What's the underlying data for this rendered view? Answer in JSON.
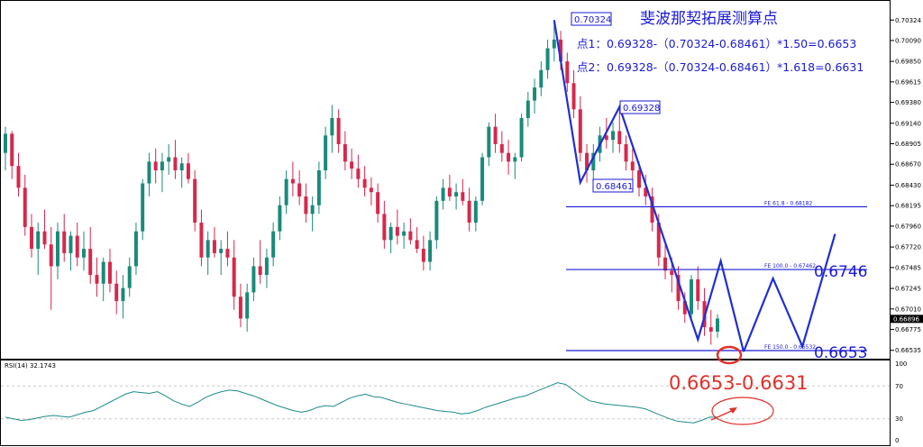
{
  "chart_data": {
    "type": "candlestick",
    "price_ticks": [
      "0.70324",
      "0.70090",
      "0.69850",
      "0.69615",
      "0.69380",
      "0.69140",
      "0.68905",
      "0.68670",
      "0.68430",
      "0.68195",
      "0.67960",
      "0.67720",
      "0.67485",
      "0.67245",
      "0.67010",
      "0.66775",
      "0.66535"
    ],
    "current_price": "0.66896",
    "price_range": [
      0.6646,
      0.7043
    ],
    "annotations": {
      "title": "斐波那契拓展测算点",
      "line1": "点1：0.69328-（0.70324-0.68461）*1.50=0.6653",
      "line2": "点2：0.69328-（0.70324-0.68461）*1.618=0.6631",
      "high_label": "0.70324",
      "mid_label": "0.69328",
      "low_label": "0.68461",
      "target_range": "0.6653-0.6631"
    },
    "fib_levels": [
      {
        "label": "FE 61.8 - 0.68182",
        "value": 0.68182,
        "big_label": ""
      },
      {
        "label": "FE 100.0 - 0.67462",
        "value": 0.67462,
        "big_label": "0.6746"
      },
      {
        "label": "FE 150.0 - 0.66532",
        "value": 0.66532,
        "big_label": "0.6653"
      }
    ],
    "rsi": {
      "label": "RSI(14) 32.1743",
      "ticks": [
        "100",
        "70",
        "30",
        "0"
      ],
      "levels": [
        70,
        30
      ],
      "values": [
        32,
        30,
        28,
        29,
        31,
        33,
        34,
        33,
        32,
        35,
        38,
        40,
        45,
        50,
        55,
        60,
        63,
        62,
        61,
        63,
        58,
        52,
        48,
        45,
        50,
        56,
        60,
        63,
        65,
        64,
        61,
        58,
        54,
        50,
        46,
        43,
        40,
        38,
        40,
        44,
        46,
        45,
        50,
        55,
        58,
        60,
        57,
        56,
        53,
        50,
        48,
        46,
        44,
        42,
        40,
        39,
        38,
        36,
        37,
        40,
        44,
        47,
        50,
        53,
        56,
        58,
        62,
        66,
        70,
        74,
        72,
        65,
        58,
        52,
        50,
        48,
        47,
        46,
        45,
        44,
        42,
        38,
        34,
        30,
        27,
        26,
        25,
        28,
        32,
        32
      ]
    },
    "candles": [
      [
        0.688,
        0.691,
        0.686,
        0.6902
      ],
      [
        0.6902,
        0.6905,
        0.685,
        0.6865
      ],
      [
        0.6865,
        0.688,
        0.683,
        0.684
      ],
      [
        0.684,
        0.6855,
        0.6785,
        0.6795
      ],
      [
        0.6795,
        0.681,
        0.676,
        0.677
      ],
      [
        0.677,
        0.68,
        0.674,
        0.679
      ],
      [
        0.679,
        0.6815,
        0.677,
        0.6775
      ],
      [
        0.6775,
        0.6795,
        0.67,
        0.675
      ],
      [
        0.675,
        0.68,
        0.6735,
        0.679
      ],
      [
        0.679,
        0.681,
        0.6755,
        0.6765
      ],
      [
        0.6765,
        0.679,
        0.6745,
        0.6785
      ],
      [
        0.6785,
        0.68,
        0.675,
        0.676
      ],
      [
        0.676,
        0.679,
        0.6745,
        0.677
      ],
      [
        0.677,
        0.6795,
        0.673,
        0.674
      ],
      [
        0.674,
        0.676,
        0.6715,
        0.673
      ],
      [
        0.673,
        0.676,
        0.671,
        0.6755
      ],
      [
        0.6755,
        0.677,
        0.672,
        0.673
      ],
      [
        0.673,
        0.6745,
        0.6695,
        0.671
      ],
      [
        0.671,
        0.674,
        0.669,
        0.6725
      ],
      [
        0.6725,
        0.676,
        0.6715,
        0.675
      ],
      [
        0.675,
        0.68,
        0.674,
        0.679
      ],
      [
        0.679,
        0.685,
        0.678,
        0.6845
      ],
      [
        0.6845,
        0.688,
        0.683,
        0.687
      ],
      [
        0.687,
        0.6885,
        0.6845,
        0.686
      ],
      [
        0.686,
        0.688,
        0.6835,
        0.687
      ],
      [
        0.687,
        0.689,
        0.6855,
        0.6875
      ],
      [
        0.6875,
        0.6895,
        0.685,
        0.686
      ],
      [
        0.686,
        0.6875,
        0.684,
        0.6868
      ],
      [
        0.6868,
        0.688,
        0.6845,
        0.685
      ],
      [
        0.685,
        0.686,
        0.679,
        0.68
      ],
      [
        0.68,
        0.6815,
        0.675,
        0.676
      ],
      [
        0.676,
        0.679,
        0.674,
        0.678
      ],
      [
        0.678,
        0.6795,
        0.676,
        0.6765
      ],
      [
        0.6765,
        0.678,
        0.674,
        0.677
      ],
      [
        0.677,
        0.679,
        0.675,
        0.676
      ],
      [
        0.676,
        0.678,
        0.67,
        0.6715
      ],
      [
        0.6715,
        0.673,
        0.668,
        0.669
      ],
      [
        0.669,
        0.673,
        0.6675,
        0.672
      ],
      [
        0.672,
        0.676,
        0.671,
        0.675
      ],
      [
        0.675,
        0.678,
        0.673,
        0.674
      ],
      [
        0.674,
        0.677,
        0.6725,
        0.676
      ],
      [
        0.676,
        0.68,
        0.675,
        0.679
      ],
      [
        0.679,
        0.683,
        0.678,
        0.682
      ],
      [
        0.682,
        0.686,
        0.681,
        0.685
      ],
      [
        0.685,
        0.687,
        0.683,
        0.6845
      ],
      [
        0.6845,
        0.686,
        0.682,
        0.683
      ],
      [
        0.683,
        0.6845,
        0.68,
        0.681
      ],
      [
        0.681,
        0.683,
        0.679,
        0.682
      ],
      [
        0.682,
        0.687,
        0.681,
        0.686
      ],
      [
        0.686,
        0.691,
        0.685,
        0.69
      ],
      [
        0.69,
        0.6935,
        0.688,
        0.692
      ],
      [
        0.692,
        0.693,
        0.688,
        0.689
      ],
      [
        0.689,
        0.6905,
        0.686,
        0.687
      ],
      [
        0.687,
        0.6885,
        0.685,
        0.6862
      ],
      [
        0.6862,
        0.6878,
        0.684,
        0.685
      ],
      [
        0.685,
        0.6865,
        0.683,
        0.684
      ],
      [
        0.684,
        0.6852,
        0.682,
        0.6835
      ],
      [
        0.6835,
        0.6845,
        0.68,
        0.681
      ],
      [
        0.681,
        0.6825,
        0.677,
        0.678
      ],
      [
        0.678,
        0.68,
        0.6765,
        0.6795
      ],
      [
        0.6795,
        0.6815,
        0.6775,
        0.6785
      ],
      [
        0.6785,
        0.68,
        0.677,
        0.679
      ],
      [
        0.679,
        0.6805,
        0.6775,
        0.678
      ],
      [
        0.678,
        0.6795,
        0.6765,
        0.677
      ],
      [
        0.677,
        0.6785,
        0.6745,
        0.6755
      ],
      [
        0.6755,
        0.679,
        0.6745,
        0.678
      ],
      [
        0.678,
        0.683,
        0.677,
        0.6825
      ],
      [
        0.6825,
        0.685,
        0.6815,
        0.684
      ],
      [
        0.684,
        0.6855,
        0.6825,
        0.683
      ],
      [
        0.683,
        0.6845,
        0.6815,
        0.6835
      ],
      [
        0.6835,
        0.685,
        0.682,
        0.6825
      ],
      [
        0.6825,
        0.684,
        0.679,
        0.68
      ],
      [
        0.68,
        0.683,
        0.679,
        0.6825
      ],
      [
        0.6825,
        0.688,
        0.682,
        0.6875
      ],
      [
        0.6875,
        0.6915,
        0.6865,
        0.691
      ],
      [
        0.691,
        0.6925,
        0.688,
        0.689
      ],
      [
        0.689,
        0.6905,
        0.687,
        0.688
      ],
      [
        0.688,
        0.6895,
        0.6855,
        0.687
      ],
      [
        0.687,
        0.688,
        0.685,
        0.6875
      ],
      [
        0.6875,
        0.6925,
        0.687,
        0.692
      ],
      [
        0.692,
        0.695,
        0.691,
        0.694
      ],
      [
        0.694,
        0.6965,
        0.6925,
        0.6955
      ],
      [
        0.6955,
        0.6985,
        0.6945,
        0.6975
      ],
      [
        0.6975,
        0.701,
        0.6965,
        0.7
      ],
      [
        0.7,
        0.7032,
        0.6985,
        0.701
      ],
      [
        0.701,
        0.702,
        0.6975,
        0.6985
      ],
      [
        0.6985,
        0.6995,
        0.695,
        0.696
      ],
      [
        0.696,
        0.6975,
        0.692,
        0.693
      ],
      [
        0.693,
        0.6945,
        0.687,
        0.688
      ],
      [
        0.688,
        0.689,
        0.6846,
        0.686
      ],
      [
        0.686,
        0.689,
        0.685,
        0.688
      ],
      [
        0.688,
        0.691,
        0.687,
        0.69
      ],
      [
        0.69,
        0.692,
        0.6885,
        0.6895
      ],
      [
        0.6895,
        0.6915,
        0.688,
        0.6905
      ],
      [
        0.6905,
        0.6933,
        0.688,
        0.689
      ],
      [
        0.689,
        0.69,
        0.686,
        0.687
      ],
      [
        0.687,
        0.6885,
        0.685,
        0.686
      ],
      [
        0.686,
        0.687,
        0.683,
        0.684
      ],
      [
        0.684,
        0.6855,
        0.682,
        0.683
      ],
      [
        0.683,
        0.684,
        0.679,
        0.68
      ],
      [
        0.68,
        0.681,
        0.675,
        0.676
      ],
      [
        0.676,
        0.6775,
        0.6735,
        0.6745
      ],
      [
        0.6745,
        0.676,
        0.672,
        0.674
      ],
      [
        0.674,
        0.675,
        0.67,
        0.671
      ],
      [
        0.671,
        0.672,
        0.6685,
        0.6695
      ],
      [
        0.6695,
        0.674,
        0.669,
        0.6735
      ],
      [
        0.6735,
        0.675,
        0.67,
        0.671
      ],
      [
        0.671,
        0.6725,
        0.667,
        0.668
      ],
      [
        0.668,
        0.67,
        0.666,
        0.6675
      ],
      [
        0.6675,
        0.6695,
        0.6668,
        0.669
      ]
    ]
  }
}
